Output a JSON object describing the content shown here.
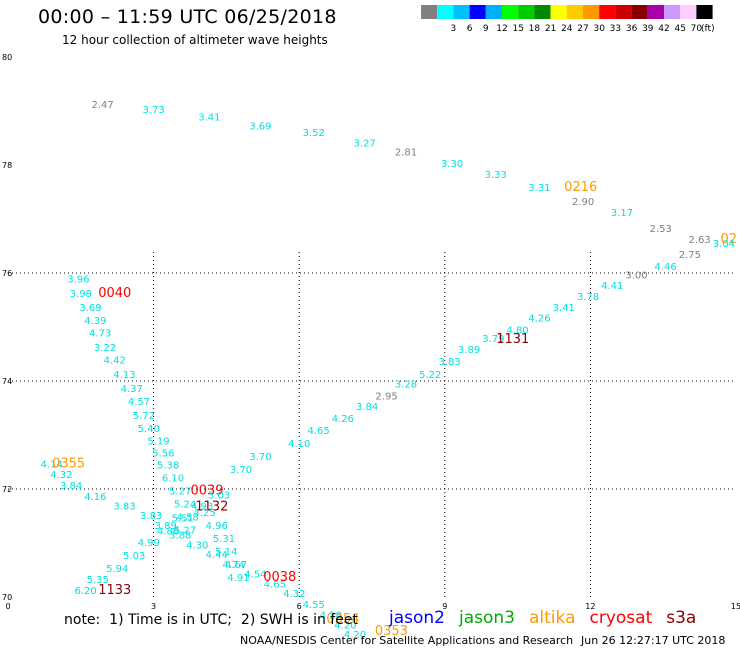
{
  "header": {
    "title": "00:00 – 11:59 UTC 06/25/2018",
    "subtitle": "12 hour collection of altimeter wave heights"
  },
  "legend": {
    "unit_label": "(ft)",
    "bins": [
      {
        "label": "",
        "color": "#808080"
      },
      {
        "label": "3",
        "color": "#00ffff"
      },
      {
        "label": "6",
        "color": "#00c0ff"
      },
      {
        "label": "9",
        "color": "#0000ff"
      },
      {
        "label": "12",
        "color": "#00b0ff"
      },
      {
        "label": "15",
        "color": "#00ff00"
      },
      {
        "label": "18",
        "color": "#00cc00"
      },
      {
        "label": "21",
        "color": "#008800"
      },
      {
        "label": "24",
        "color": "#ffff00"
      },
      {
        "label": "27",
        "color": "#ffcc00"
      },
      {
        "label": "30",
        "color": "#ff9900"
      },
      {
        "label": "33",
        "color": "#ff0000"
      },
      {
        "label": "36",
        "color": "#cc0000"
      },
      {
        "label": "39",
        "color": "#880000"
      },
      {
        "label": "42",
        "color": "#aa00aa"
      },
      {
        "label": "45",
        "color": "#cc99ff"
      },
      {
        "label": "70",
        "color": "#ffccff"
      },
      {
        "label": "",
        "color": "#000000"
      }
    ]
  },
  "chart_data": {
    "type": "scatter",
    "title": "00:00 – 11:59 UTC 06/25/2018",
    "subtitle": "12 hour collection of altimeter wave heights",
    "xlim": [
      0,
      15
    ],
    "ylim": [
      70,
      80
    ],
    "x_ticks": [
      "0",
      "3",
      "6",
      "9",
      "12",
      "15"
    ],
    "y_ticks": [
      "70",
      "72",
      "74",
      "76",
      "78",
      "80"
    ],
    "grid": true,
    "colors": {
      "cyan": "#00e0e0",
      "gray": "#808080",
      "orange": "#ff9900",
      "red": "#ff0000",
      "darkred": "#880000",
      "black": "#000000"
    },
    "series": [
      {
        "name": "jason2",
        "color": "#0000ff",
        "points": []
      },
      {
        "name": "jason3",
        "color": "#00aa00",
        "points": []
      },
      {
        "name": "altika",
        "color": "#ff9900",
        "points": []
      },
      {
        "name": "cryosat",
        "color": "#ff0000",
        "points": []
      },
      {
        "name": "s3a",
        "color": "#880000",
        "points": []
      }
    ],
    "points": [
      {
        "x": 1.95,
        "y": 79.06,
        "label": "2.47",
        "color": "gray"
      },
      {
        "x": 3.0,
        "y": 78.96,
        "label": "3.73",
        "color": "cyan"
      },
      {
        "x": 4.15,
        "y": 78.82,
        "label": "3.41",
        "color": "cyan"
      },
      {
        "x": 5.2,
        "y": 78.66,
        "label": "3.69",
        "color": "cyan"
      },
      {
        "x": 6.3,
        "y": 78.54,
        "label": "3.52",
        "color": "cyan"
      },
      {
        "x": 7.35,
        "y": 78.34,
        "label": "3.27",
        "color": "cyan"
      },
      {
        "x": 8.2,
        "y": 78.18,
        "label": "2.81",
        "color": "gray"
      },
      {
        "x": 9.15,
        "y": 77.96,
        "label": "3.30",
        "color": "cyan"
      },
      {
        "x": 10.05,
        "y": 77.76,
        "label": "3.33",
        "color": "cyan"
      },
      {
        "x": 10.95,
        "y": 77.52,
        "label": "3.31",
        "color": "cyan"
      },
      {
        "x": 11.8,
        "y": 77.52,
        "label": "0216",
        "color": "orange",
        "tag": true
      },
      {
        "x": 11.85,
        "y": 77.26,
        "label": "2.90",
        "color": "gray"
      },
      {
        "x": 12.65,
        "y": 77.06,
        "label": "3.17",
        "color": "cyan"
      },
      {
        "x": 13.45,
        "y": 76.76,
        "label": "2.53",
        "color": "gray"
      },
      {
        "x": 14.25,
        "y": 76.56,
        "label": "2.63",
        "color": "gray"
      },
      {
        "x": 14.85,
        "y": 76.56,
        "label": "02",
        "color": "orange",
        "tag": true
      },
      {
        "x": 1.45,
        "y": 75.82,
        "label": "3.96",
        "color": "cyan"
      },
      {
        "x": 1.5,
        "y": 75.56,
        "label": "3.98",
        "color": "cyan"
      },
      {
        "x": 2.2,
        "y": 75.56,
        "label": "0040",
        "color": "red",
        "tag": true
      },
      {
        "x": 1.7,
        "y": 75.3,
        "label": "3.69",
        "color": "cyan"
      },
      {
        "x": 1.8,
        "y": 75.06,
        "label": "4.39",
        "color": "cyan"
      },
      {
        "x": 1.9,
        "y": 74.82,
        "label": "4.73",
        "color": "cyan"
      },
      {
        "x": 2.0,
        "y": 74.56,
        "label": "3.22",
        "color": "cyan"
      },
      {
        "x": 2.2,
        "y": 74.32,
        "label": "4.42",
        "color": "cyan"
      },
      {
        "x": 2.4,
        "y": 74.06,
        "label": "4.13",
        "color": "cyan"
      },
      {
        "x": 2.55,
        "y": 73.8,
        "label": "4.37",
        "color": "cyan"
      },
      {
        "x": 2.7,
        "y": 73.56,
        "label": "4.57",
        "color": "cyan"
      },
      {
        "x": 2.8,
        "y": 73.3,
        "label": "5.72",
        "color": "cyan"
      },
      {
        "x": 2.9,
        "y": 73.06,
        "label": "5.40",
        "color": "cyan"
      },
      {
        "x": 3.1,
        "y": 72.82,
        "label": "5.19",
        "color": "cyan"
      },
      {
        "x": 3.2,
        "y": 72.6,
        "label": "5.56",
        "color": "cyan"
      },
      {
        "x": 3.3,
        "y": 72.38,
        "label": "5.38",
        "color": "cyan"
      },
      {
        "x": 3.4,
        "y": 72.14,
        "label": "6.10",
        "color": "cyan"
      },
      {
        "x": 3.55,
        "y": 71.9,
        "label": "5.27",
        "color": "cyan"
      },
      {
        "x": 4.1,
        "y": 71.9,
        "label": "0039",
        "color": "red",
        "tag": true
      },
      {
        "x": 3.65,
        "y": 71.66,
        "label": "5.24",
        "color": "cyan"
      },
      {
        "x": 3.7,
        "y": 71.42,
        "label": "4.58",
        "color": "cyan"
      },
      {
        "x": 3.65,
        "y": 71.18,
        "label": "5.27",
        "color": "cyan"
      },
      {
        "x": 0.9,
        "y": 72.4,
        "label": "4.14",
        "color": "cyan"
      },
      {
        "x": 1.25,
        "y": 72.4,
        "label": "0355",
        "color": "orange",
        "tag": true
      },
      {
        "x": 1.1,
        "y": 72.2,
        "label": "4.32",
        "color": "cyan"
      },
      {
        "x": 1.3,
        "y": 72.0,
        "label": "3.84",
        "color": "cyan"
      },
      {
        "x": 1.8,
        "y": 71.8,
        "label": "4.16",
        "color": "cyan"
      },
      {
        "x": 2.4,
        "y": 71.62,
        "label": "3.83",
        "color": "cyan"
      },
      {
        "x": 2.95,
        "y": 71.44,
        "label": "3.83",
        "color": "cyan"
      },
      {
        "x": 3.25,
        "y": 71.26,
        "label": "3.89",
        "color": "cyan"
      },
      {
        "x": 3.55,
        "y": 71.08,
        "label": "3.88",
        "color": "cyan"
      },
      {
        "x": 3.9,
        "y": 70.9,
        "label": "4.30",
        "color": "cyan"
      },
      {
        "x": 4.3,
        "y": 70.72,
        "label": "4.44",
        "color": "cyan"
      },
      {
        "x": 4.7,
        "y": 70.54,
        "label": "4.67",
        "color": "cyan"
      },
      {
        "x": 5.1,
        "y": 70.36,
        "label": "4.54",
        "color": "cyan"
      },
      {
        "x": 5.5,
        "y": 70.18,
        "label": "4.65",
        "color": "cyan"
      },
      {
        "x": 5.9,
        "y": 70.0,
        "label": "4.32",
        "color": "cyan"
      },
      {
        "x": 6.3,
        "y": 69.8,
        "label": "4.55",
        "color": "cyan"
      },
      {
        "x": 6.65,
        "y": 69.6,
        "label": "4.28",
        "color": "cyan"
      },
      {
        "x": 6.95,
        "y": 69.42,
        "label": "4.20",
        "color": "cyan"
      },
      {
        "x": 7.15,
        "y": 69.24,
        "label": "4.20",
        "color": "cyan"
      },
      {
        "x": 6.9,
        "y": 69.52,
        "label": "0354",
        "color": "orange",
        "tag": true
      },
      {
        "x": 7.9,
        "y": 69.3,
        "label": "0353",
        "color": "orange",
        "tag": true
      },
      {
        "x": 1.6,
        "y": 70.06,
        "label": "6.20",
        "color": "cyan"
      },
      {
        "x": 2.2,
        "y": 70.06,
        "label": "1133",
        "color": "darkred",
        "tag": true
      },
      {
        "x": 1.85,
        "y": 70.26,
        "label": "5.35",
        "color": "cyan"
      },
      {
        "x": 2.25,
        "y": 70.46,
        "label": "5.94",
        "color": "cyan"
      },
      {
        "x": 2.6,
        "y": 70.7,
        "label": "5.03",
        "color": "cyan"
      },
      {
        "x": 2.9,
        "y": 70.94,
        "label": "4.99",
        "color": "cyan"
      },
      {
        "x": 3.3,
        "y": 71.16,
        "label": "4.86",
        "color": "cyan"
      },
      {
        "x": 3.6,
        "y": 71.4,
        "label": "5.51",
        "color": "cyan"
      },
      {
        "x": 4.0,
        "y": 71.62,
        "label": "4.93",
        "color": "cyan"
      },
      {
        "x": 4.35,
        "y": 71.82,
        "label": "5.03",
        "color": "cyan"
      },
      {
        "x": 4.2,
        "y": 71.6,
        "label": "1132",
        "color": "darkred",
        "tag": true
      },
      {
        "x": 4.05,
        "y": 71.5,
        "label": "4.25",
        "color": "cyan"
      },
      {
        "x": 4.3,
        "y": 71.26,
        "label": "4.96",
        "color": "cyan"
      },
      {
        "x": 4.45,
        "y": 71.02,
        "label": "5.31",
        "color": "cyan"
      },
      {
        "x": 4.5,
        "y": 70.78,
        "label": "5.14",
        "color": "cyan"
      },
      {
        "x": 4.65,
        "y": 70.54,
        "label": "4.74",
        "color": "cyan"
      },
      {
        "x": 4.75,
        "y": 70.3,
        "label": "4.91",
        "color": "cyan"
      },
      {
        "x": 5.6,
        "y": 70.3,
        "label": "0038",
        "color": "red",
        "tag": true
      },
      {
        "x": 4.8,
        "y": 72.3,
        "label": "3.70",
        "color": "cyan"
      },
      {
        "x": 5.2,
        "y": 72.54,
        "label": "3.70",
        "color": "cyan"
      },
      {
        "x": 6.0,
        "y": 72.78,
        "label": "4.10",
        "color": "cyan"
      },
      {
        "x": 6.4,
        "y": 73.02,
        "label": "4.65",
        "color": "cyan"
      },
      {
        "x": 6.9,
        "y": 73.24,
        "label": "4.26",
        "color": "cyan"
      },
      {
        "x": 7.4,
        "y": 73.46,
        "label": "3.84",
        "color": "cyan"
      },
      {
        "x": 7.8,
        "y": 73.66,
        "label": "2.95",
        "color": "gray"
      },
      {
        "x": 8.2,
        "y": 73.88,
        "label": "3.28",
        "color": "cyan"
      },
      {
        "x": 8.7,
        "y": 74.06,
        "label": "5.22",
        "color": "cyan"
      },
      {
        "x": 9.1,
        "y": 74.3,
        "label": "3.83",
        "color": "cyan"
      },
      {
        "x": 9.5,
        "y": 74.52,
        "label": "3.89",
        "color": "cyan"
      },
      {
        "x": 10.0,
        "y": 74.72,
        "label": "3.79",
        "color": "cyan"
      },
      {
        "x": 10.5,
        "y": 74.88,
        "label": "4.80",
        "color": "cyan"
      },
      {
        "x": 10.4,
        "y": 74.7,
        "label": "1131",
        "color": "darkred",
        "tag": true
      },
      {
        "x": 10.95,
        "y": 75.1,
        "label": "4.26",
        "color": "cyan"
      },
      {
        "x": 11.45,
        "y": 75.3,
        "label": "3.41",
        "color": "cyan"
      },
      {
        "x": 11.95,
        "y": 75.5,
        "label": "3.78",
        "color": "cyan"
      },
      {
        "x": 12.45,
        "y": 75.7,
        "label": "4.41",
        "color": "cyan"
      },
      {
        "x": 12.95,
        "y": 75.9,
        "label": "3.00",
        "color": "gray"
      },
      {
        "x": 13.55,
        "y": 76.06,
        "label": "4.46",
        "color": "cyan"
      },
      {
        "x": 14.05,
        "y": 76.28,
        "label": "2.75",
        "color": "gray"
      },
      {
        "x": 14.75,
        "y": 76.48,
        "label": "3.04",
        "color": "cyan"
      }
    ]
  },
  "note": "note:  1) Time is in UTC;  2) SWH is in feet",
  "satellites": [
    "jason2",
    "jason3",
    "altika",
    "cryosat",
    "s3a"
  ],
  "satellite_colors": [
    "#0000ff",
    "#00aa00",
    "#ff9900",
    "#ff0000",
    "#880000"
  ],
  "footer": "NOAA/NESDIS Center for Satellite Applications and Research",
  "timestamp": "Jun 26 12:27:17 UTC 2018"
}
